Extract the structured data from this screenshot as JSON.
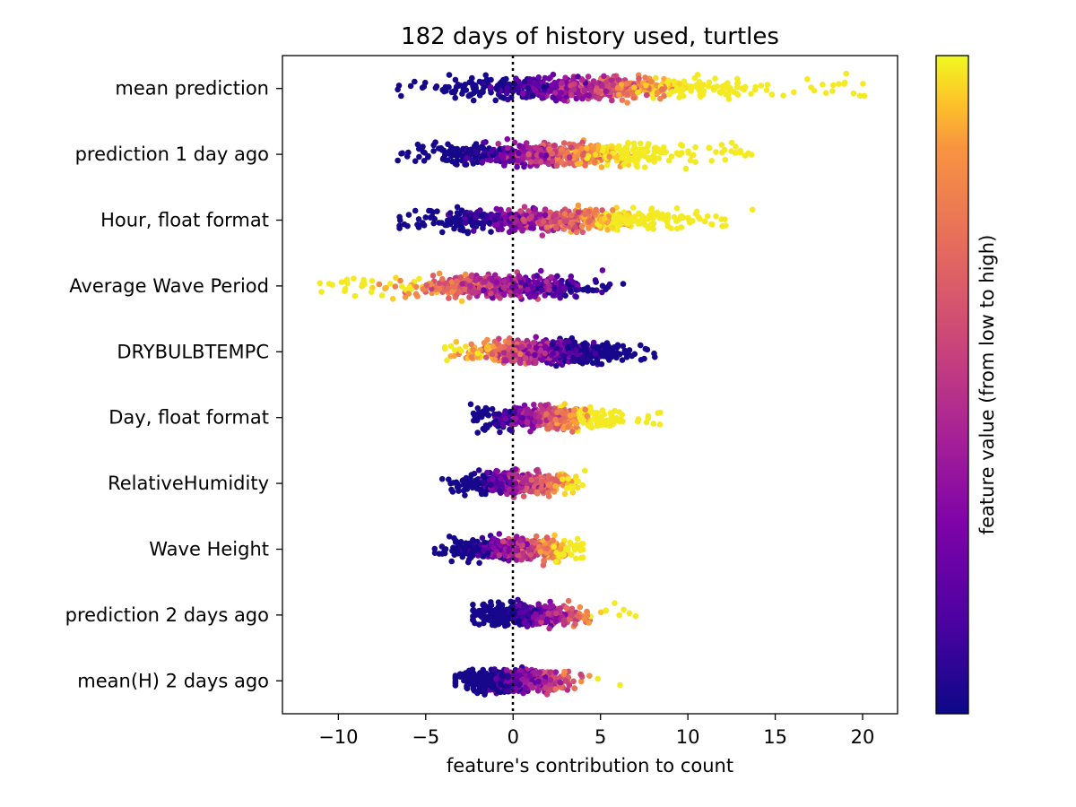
{
  "chart_data": {
    "type": "scatter",
    "subtype": "beeswarm",
    "title": "182 days of history used, turtles",
    "xlabel": "feature's contribution to count",
    "ylabel": "",
    "xlim": [
      -13.2,
      22
    ],
    "xticks": [
      -10,
      -5,
      0,
      5,
      10,
      15,
      20
    ],
    "xtick_labels": [
      "−10",
      "−5",
      "0",
      "5",
      "10",
      "15",
      "20"
    ],
    "reference_line": {
      "x": 0,
      "style": "dotted",
      "color": "#000000"
    },
    "colorbar": {
      "label": "feature value (from low to high)",
      "colormap": "plasma",
      "low_color": "#0d0887",
      "high_color": "#f0f921"
    },
    "grid": false,
    "features": [
      {
        "name": "mean prediction",
        "range": [
          -6.6,
          20.4
        ],
        "core": [
          -4.8,
          13.8
        ],
        "low_min": -5,
        "low_max": 5,
        "high_min": 0,
        "high_max": 20,
        "mid": 0.55,
        "spread": 0.55,
        "n": 700
      },
      {
        "name": "prediction 1 day ago",
        "range": [
          -6.6,
          13.8
        ],
        "core": [
          -6.0,
          11.0
        ],
        "low_min": -6.5,
        "low_max": 2,
        "high_min": 0,
        "high_max": 11,
        "mid": 0.5,
        "spread": 0.45,
        "n": 650
      },
      {
        "name": "Hour, float format",
        "range": [
          -6.5,
          13.8
        ],
        "core": [
          -5.8,
          10.0
        ],
        "low_min": -5,
        "low_max": 0,
        "high_min": 0,
        "high_max": 13,
        "mid": 0.55,
        "spread": 0.55,
        "n": 650
      },
      {
        "name": "Average Wave Period",
        "range": [
          -11.7,
          6.3
        ],
        "core": [
          -6.0,
          4.5
        ],
        "low_min": 0,
        "low_max": 6.3,
        "high_min": -11.7,
        "high_max": -3,
        "mid": 0.55,
        "spread": 0.35,
        "n": 600
      },
      {
        "name": "DRYBULBTEMPC",
        "range": [
          -3.9,
          8.2
        ],
        "core": [
          -3.0,
          6.5
        ],
        "low_min": 0,
        "low_max": 8,
        "high_min": -3.9,
        "high_max": 1,
        "mid": 0.4,
        "spread": 0.25,
        "n": 600
      },
      {
        "name": "Day, float format",
        "range": [
          -2.5,
          8.5
        ],
        "core": [
          -2.4,
          5.8
        ],
        "low_min": -2.5,
        "low_max": 0.6,
        "high_min": 0.2,
        "high_max": 8.5,
        "mid": 0.55,
        "spread": 0.55,
        "n": 550
      },
      {
        "name": "RelativeHumidity",
        "range": [
          -4.2,
          4.2
        ],
        "core": [
          -3.0,
          3.5
        ],
        "low_min": -3,
        "low_max": 0,
        "high_min": 0,
        "high_max": 4,
        "mid": 0.4,
        "spread": 0.15,
        "n": 550
      },
      {
        "name": "Wave Height",
        "range": [
          -4.5,
          4.0
        ],
        "core": [
          -3.5,
          3.8
        ],
        "low_min": -4.5,
        "low_max": 0,
        "high_min": 0,
        "high_max": 4,
        "mid": 0.4,
        "spread": 0.35,
        "n": 550
      },
      {
        "name": "prediction 2 days ago",
        "range": [
          -2.3,
          7.3
        ],
        "core": [
          -2.2,
          4.0
        ],
        "low_min": -2.3,
        "low_max": 3,
        "high_min": 1,
        "high_max": 7.3,
        "mid": 0.4,
        "spread": 0.25,
        "n": 500
      },
      {
        "name": "mean(H) 2 days ago",
        "range": [
          -3.3,
          6.5
        ],
        "core": [
          -3.3,
          3.5
        ],
        "low_min": -3.3,
        "low_max": 2,
        "high_min": 1,
        "high_max": 6.5,
        "mid": 0.4,
        "spread": 0.2,
        "n": 500
      }
    ]
  }
}
